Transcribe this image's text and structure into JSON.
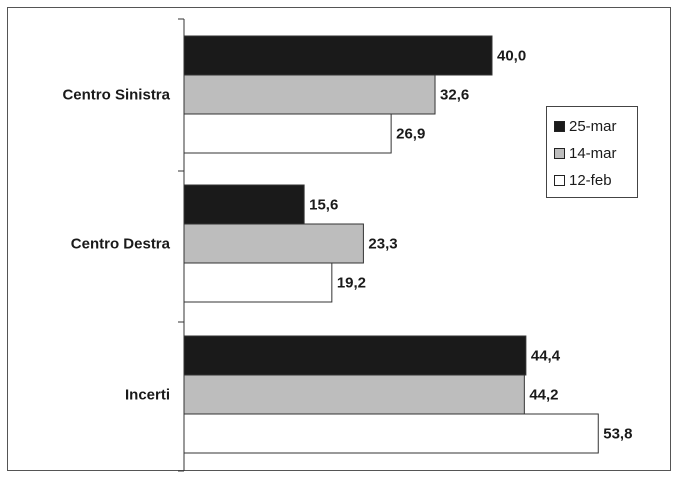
{
  "chart_data": {
    "type": "bar",
    "orientation": "horizontal",
    "categories": [
      "Centro Sinistra",
      "Centro Destra",
      "Incerti"
    ],
    "series": [
      {
        "name": "25-mar",
        "values": [
          40.0,
          15.6,
          44.4
        ],
        "labels": [
          "40,0",
          "15,6",
          "44,4"
        ],
        "color": "#1a1a1a"
      },
      {
        "name": "14-mar",
        "values": [
          32.6,
          23.3,
          44.2
        ],
        "labels": [
          "32,6",
          "23,3",
          "44,2"
        ],
        "color": "#bdbdbd"
      },
      {
        "name": "12-feb",
        "values": [
          26.9,
          19.2,
          53.8
        ],
        "labels": [
          "26,9",
          "19,2",
          "53,8"
        ],
        "color": "#ffffff"
      }
    ],
    "title": "",
    "xlabel": "",
    "ylabel": "",
    "xlim": [
      0,
      100
    ],
    "grid": false,
    "legend_position": "right"
  }
}
